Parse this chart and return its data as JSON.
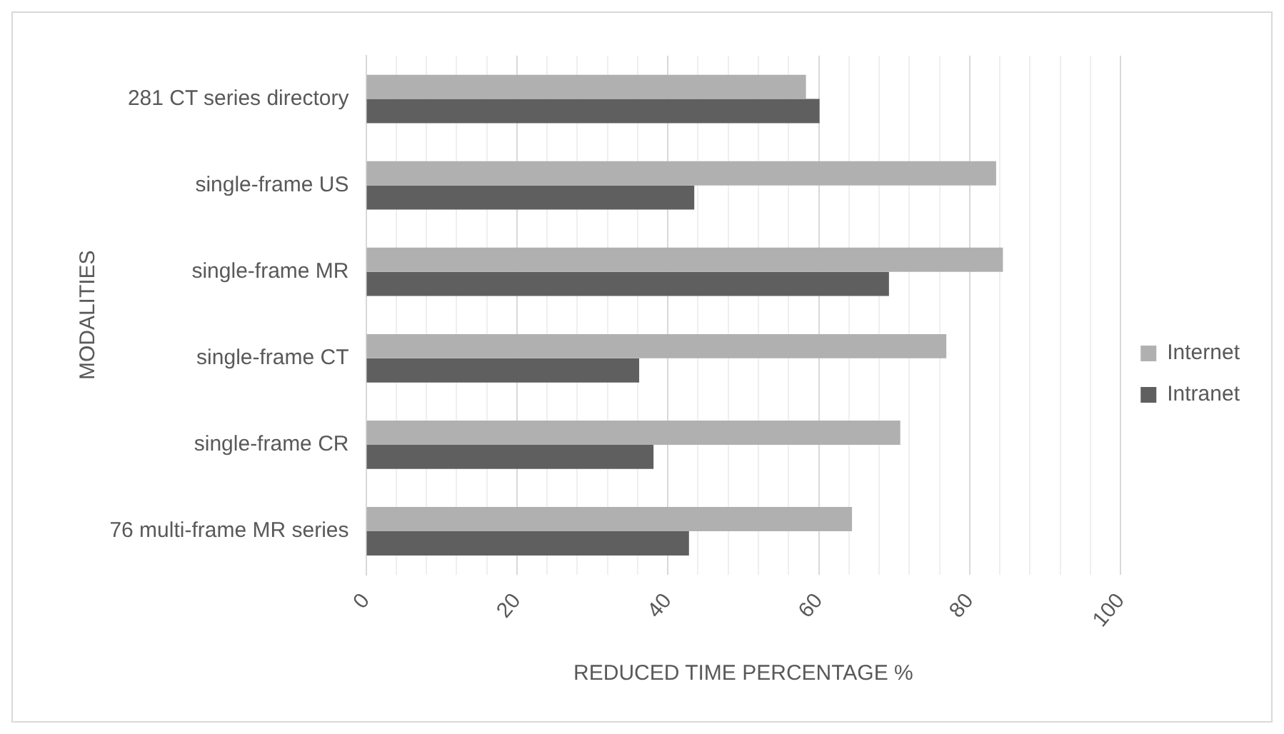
{
  "chart_data": {
    "type": "bar",
    "orientation": "horizontal",
    "xlabel": "REDUCED TIME PERCENTAGE %",
    "ylabel": "MODALITIES",
    "categories": [
      "281 CT series directory",
      "single-frame US",
      "single-frame MR",
      "single-frame CT",
      "single-frame CR",
      "76 multi-frame MR series"
    ],
    "series": [
      {
        "name": "Internet",
        "color": "#b0b0b0",
        "values": [
          58.3,
          83.5,
          84.4,
          76.9,
          70.8,
          64.4
        ]
      },
      {
        "name": "Intranet",
        "color": "#5f5f5f",
        "values": [
          60.1,
          43.5,
          69.3,
          36.2,
          38.1,
          42.8
        ]
      }
    ],
    "xlim": [
      0,
      100
    ],
    "xticks": [
      0,
      {
        "value": 4,
        "label": null
      },
      {
        "value": 8,
        "label": null
      },
      {
        "value": 12,
        "label": null
      },
      {
        "value": 16,
        "label": null
      },
      20,
      {
        "value": 24,
        "label": null
      },
      {
        "value": 28,
        "label": null
      },
      {
        "value": 32,
        "label": null
      },
      {
        "value": 36,
        "label": null
      },
      40,
      {
        "value": 44,
        "label": null
      },
      {
        "value": 48,
        "label": null
      },
      {
        "value": 52,
        "label": null
      },
      {
        "value": 56,
        "label": null
      },
      60,
      {
        "value": 64,
        "label": null
      },
      {
        "value": 68,
        "label": null
      },
      {
        "value": 72,
        "label": null
      },
      {
        "value": 76,
        "label": null
      },
      80,
      {
        "value": 84,
        "label": null
      },
      {
        "value": 88,
        "label": null
      },
      {
        "value": 92,
        "label": null
      },
      {
        "value": 96,
        "label": null
      },
      100
    ],
    "grid": "x",
    "legend": "right"
  }
}
